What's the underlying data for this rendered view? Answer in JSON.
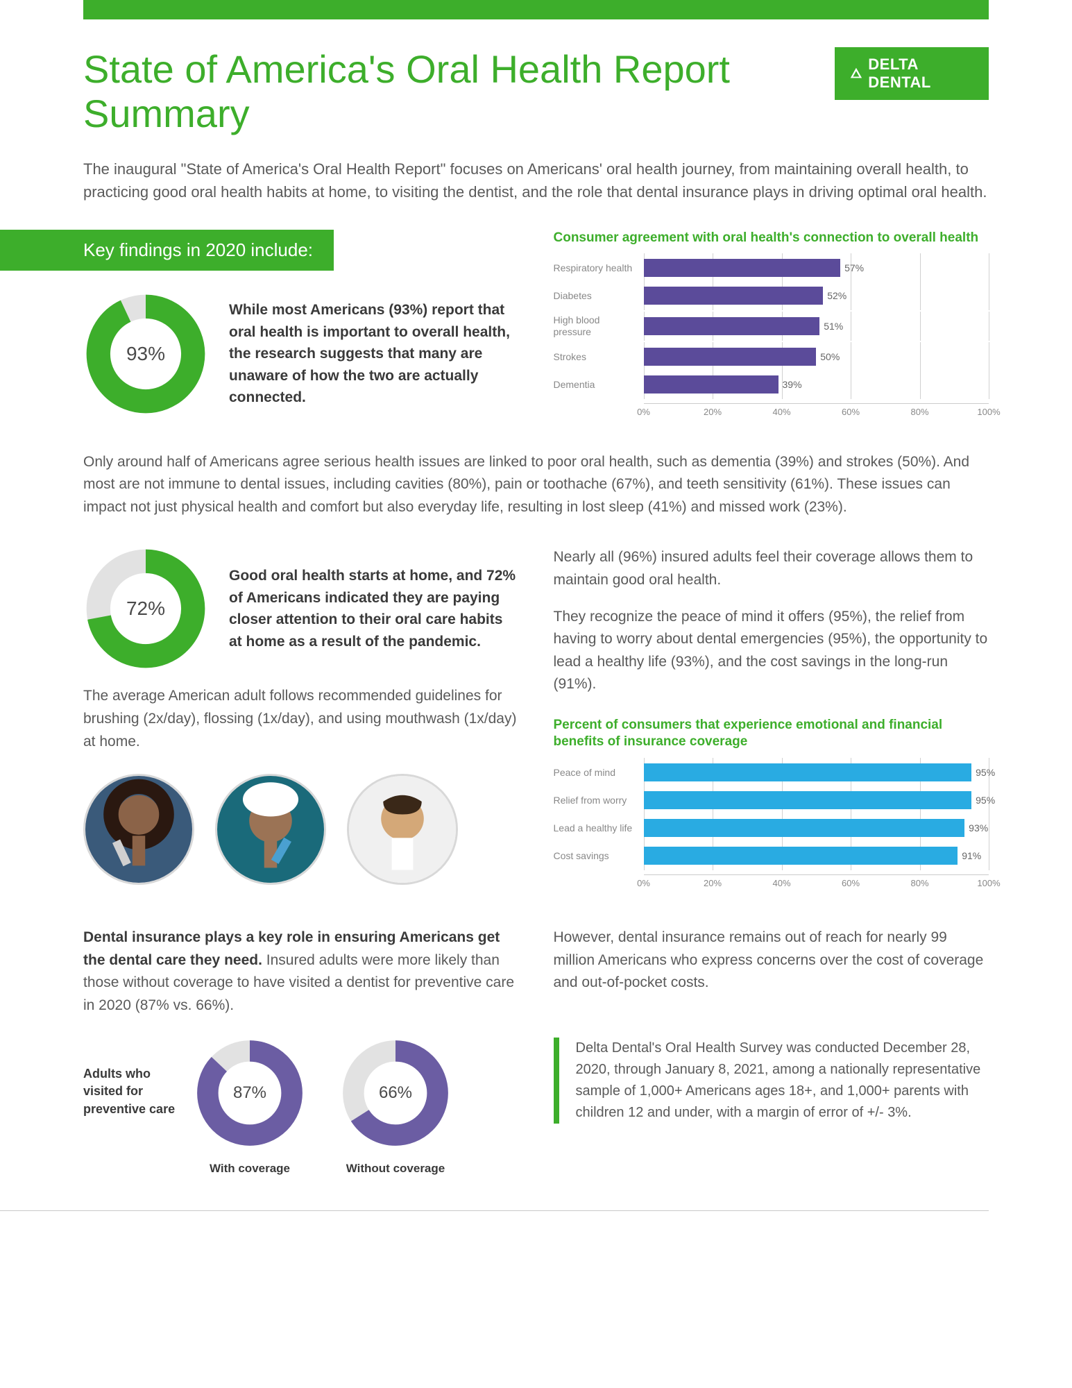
{
  "brand": {
    "name": "DELTA DENTAL",
    "color": "#3dae2b"
  },
  "title": "State of America's Oral Health Report Summary",
  "intro": "The inaugural \"State of America's Oral Health Report\" focuses on Americans' oral health journey, from maintaining overall health, to practicing good oral health habits at home, to visiting the dentist, and the role that dental insurance plays in driving optimal oral health.",
  "findings_heading": "Key findings in 2020 include:",
  "donut1": {
    "value": 93,
    "label": "93%",
    "fill_color": "#3dae2b",
    "track_color": "#e2e2e2",
    "text": "While most Americans (93%) report that oral health is important to overall health, the research suggests that many are unaware of how the two are actually connected."
  },
  "chart1": {
    "title": "Consumer agreement with oral health's connection to overall health",
    "bar_color": "#5b4b9a",
    "grid_color": "#d0d0d0",
    "xticks": [
      "0%",
      "20%",
      "40%",
      "60%",
      "80%",
      "100%"
    ],
    "bars": [
      {
        "label": "Respiratory health",
        "value": 57,
        "text": "57%"
      },
      {
        "label": "Diabetes",
        "value": 52,
        "text": "52%"
      },
      {
        "label": "High blood pressure",
        "value": 51,
        "text": "51%"
      },
      {
        "label": "Strokes",
        "value": 50,
        "text": "50%"
      },
      {
        "label": "Dementia",
        "value": 39,
        "text": "39%"
      }
    ]
  },
  "para1": "Only around half of Americans agree serious health issues are linked to poor oral health, such as dementia (39%) and strokes (50%). And most are not immune to dental issues, including cavities (80%), pain or toothache (67%), and teeth sensitivity (61%). These issues can impact not just physical health and comfort but also everyday life, resulting in lost sleep (41%) and missed work (23%).",
  "donut2": {
    "value": 72,
    "label": "72%",
    "fill_color": "#3dae2b",
    "track_color": "#e2e2e2",
    "text": "Good oral health starts at home, and 72% of Americans indicated they are paying closer attention to their oral care habits at home as a result of the pandemic."
  },
  "para2": "The average American adult follows recommended guidelines for brushing (2x/day), flossing (1x/day), and using mouthwash (1x/day) at home.",
  "right_para1": "Nearly all (96%) insured adults feel their coverage allows them to maintain good oral health.",
  "right_para2": "They recognize the peace of mind it offers (95%), the relief from having to worry about dental emergencies (95%), the opportunity to lead a healthy life (93%), and the cost savings in the long-run (91%).",
  "chart2": {
    "title": "Percent of consumers that experience emotional and financial benefits of insurance coverage",
    "bar_color": "#29abe2",
    "grid_color": "#d0d0d0",
    "xticks": [
      "0%",
      "20%",
      "40%",
      "60%",
      "80%",
      "100%"
    ],
    "bars": [
      {
        "label": "Peace of mind",
        "value": 95,
        "text": "95%"
      },
      {
        "label": "Relief from worry",
        "value": 95,
        "text": "95%"
      },
      {
        "label": "Lead a healthy life",
        "value": 93,
        "text": "93%"
      },
      {
        "label": "Cost savings",
        "value": 91,
        "text": "91%"
      }
    ]
  },
  "insurance_bold": "Dental insurance plays a key role in ensuring Americans get the dental care they need.",
  "insurance_rest": " Insured adults were more likely than those without coverage to have visited a dentist for preventive care in 2020 (87% vs. 66%).",
  "insurance_right": "However, dental insurance remains out of reach for nearly 99 million Americans who express concerns over the cost of coverage and out-of-pocket costs.",
  "preventive": {
    "side_label": "Adults who visited for preventive care",
    "donuts": [
      {
        "value": 87,
        "label": "87%",
        "caption": "With coverage",
        "fill_color": "#6b5da3",
        "track_color": "#e2e2e2"
      },
      {
        "value": 66,
        "label": "66%",
        "caption": "Without coverage",
        "fill_color": "#6b5da3",
        "track_color": "#e2e2e2"
      }
    ]
  },
  "footnote": "Delta Dental's Oral Health Survey was conducted December 28, 2020, through January 8, 2021, among a nationally representative sample of 1,000+ Americans ages 18+, and 1,000+ parents with children 12 and under, with a margin of error of +/- 3%."
}
